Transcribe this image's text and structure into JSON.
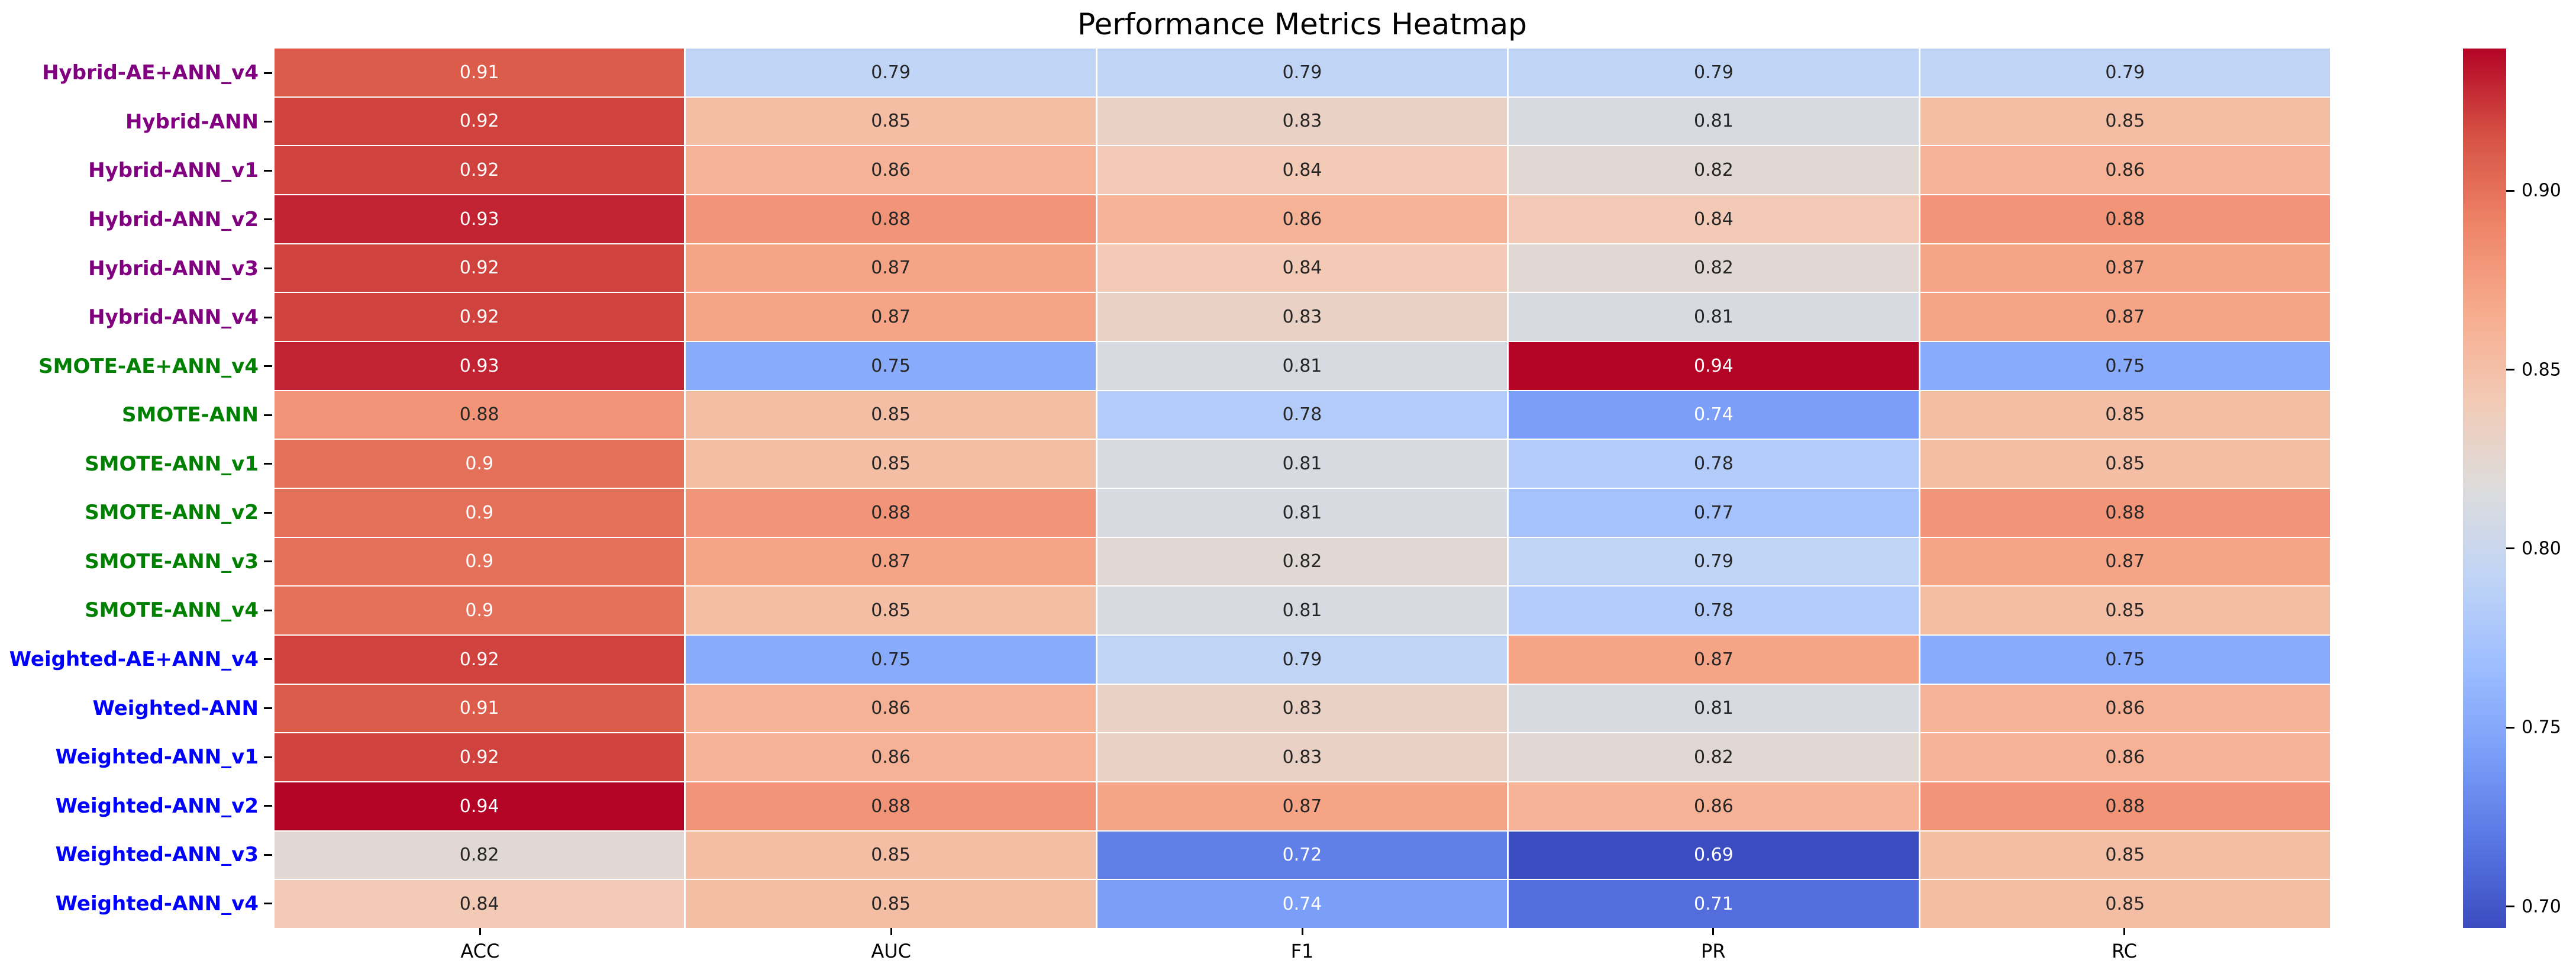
{
  "chart_data": {
    "type": "heatmap",
    "title": "Performance Metrics Heatmap",
    "columns": [
      "ACC",
      "AUC",
      "F1",
      "PR",
      "RC"
    ],
    "rows": [
      {
        "label": "Hybrid-AE+ANN_v4",
        "group": "Hybrid",
        "values": [
          0.91,
          0.79,
          0.79,
          0.79,
          0.79
        ]
      },
      {
        "label": "Hybrid-ANN",
        "group": "Hybrid",
        "values": [
          0.92,
          0.85,
          0.83,
          0.81,
          0.85
        ]
      },
      {
        "label": "Hybrid-ANN_v1",
        "group": "Hybrid",
        "values": [
          0.92,
          0.86,
          0.84,
          0.82,
          0.86
        ]
      },
      {
        "label": "Hybrid-ANN_v2",
        "group": "Hybrid",
        "values": [
          0.93,
          0.88,
          0.86,
          0.84,
          0.88
        ]
      },
      {
        "label": "Hybrid-ANN_v3",
        "group": "Hybrid",
        "values": [
          0.92,
          0.87,
          0.84,
          0.82,
          0.87
        ]
      },
      {
        "label": "Hybrid-ANN_v4",
        "group": "Hybrid",
        "values": [
          0.92,
          0.87,
          0.83,
          0.81,
          0.87
        ]
      },
      {
        "label": "SMOTE-AE+ANN_v4",
        "group": "SMOTE",
        "values": [
          0.93,
          0.75,
          0.81,
          0.94,
          0.75
        ]
      },
      {
        "label": "SMOTE-ANN",
        "group": "SMOTE",
        "values": [
          0.88,
          0.85,
          0.78,
          0.74,
          0.85
        ]
      },
      {
        "label": "SMOTE-ANN_v1",
        "group": "SMOTE",
        "values": [
          0.9,
          0.85,
          0.81,
          0.78,
          0.85
        ]
      },
      {
        "label": "SMOTE-ANN_v2",
        "group": "SMOTE",
        "values": [
          0.9,
          0.88,
          0.81,
          0.77,
          0.88
        ]
      },
      {
        "label": "SMOTE-ANN_v3",
        "group": "SMOTE",
        "values": [
          0.9,
          0.87,
          0.82,
          0.79,
          0.87
        ]
      },
      {
        "label": "SMOTE-ANN_v4",
        "group": "SMOTE",
        "values": [
          0.9,
          0.85,
          0.81,
          0.78,
          0.85
        ]
      },
      {
        "label": "Weighted-AE+ANN_v4",
        "group": "Weighted",
        "values": [
          0.92,
          0.75,
          0.79,
          0.87,
          0.75
        ]
      },
      {
        "label": "Weighted-ANN",
        "group": "Weighted",
        "values": [
          0.91,
          0.86,
          0.83,
          0.81,
          0.86
        ]
      },
      {
        "label": "Weighted-ANN_v1",
        "group": "Weighted",
        "values": [
          0.92,
          0.86,
          0.83,
          0.82,
          0.86
        ]
      },
      {
        "label": "Weighted-ANN_v2",
        "group": "Weighted",
        "values": [
          0.94,
          0.88,
          0.87,
          0.86,
          0.88
        ]
      },
      {
        "label": "Weighted-ANN_v3",
        "group": "Weighted",
        "values": [
          0.82,
          0.85,
          0.72,
          0.69,
          0.85
        ]
      },
      {
        "label": "Weighted-ANN_v4",
        "group": "Weighted",
        "values": [
          0.84,
          0.85,
          0.74,
          0.71,
          0.85
        ]
      }
    ],
    "group_colors": {
      "Hybrid": "#800080",
      "SMOTE": "#008000",
      "Weighted": "#0000ff"
    },
    "colormap": "coolwarm",
    "vmin": 0.69,
    "vmax": 0.94,
    "colorbar_ticks": [
      0.9,
      0.85,
      0.8,
      0.75,
      0.7
    ],
    "grid": "white-cell-lines",
    "legend_position": "right-colorbar"
  }
}
